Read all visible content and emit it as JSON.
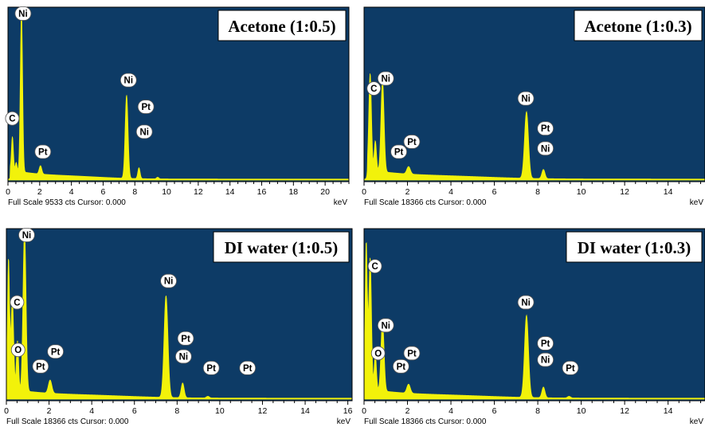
{
  "chart_data": [
    {
      "type": "area",
      "title": "Acetone (1:0.5)",
      "xmax": 21.5,
      "xticks": [
        0,
        2,
        4,
        6,
        8,
        10,
        12,
        14,
        16,
        18,
        20
      ],
      "footer": "Full Scale 9533 cts Cursor: 0.000",
      "unit": "keV",
      "peaks": [
        {
          "x": 0.28,
          "y": 0.2,
          "w": 0.06
        },
        {
          "x": 0.52,
          "y": 0.05,
          "w": 0.05
        },
        {
          "x": 0.85,
          "y": 0.97,
          "w": 0.07
        },
        {
          "x": 2.05,
          "y": 0.05,
          "w": 0.08
        },
        {
          "x": 7.48,
          "y": 0.5,
          "w": 0.09
        },
        {
          "x": 8.26,
          "y": 0.065,
          "w": 0.07
        },
        {
          "x": 9.44,
          "y": 0.01,
          "w": 0.07
        }
      ],
      "labels": [
        {
          "text": "Ni",
          "x": 0.95,
          "y": 1.0
        },
        {
          "text": "C",
          "x": 0.27,
          "y": 0.37
        },
        {
          "text": "Pt",
          "x": 2.2,
          "y": 0.17
        },
        {
          "text": "Ni",
          "x": 7.6,
          "y": 0.6
        },
        {
          "text": "Pt",
          "x": 8.7,
          "y": 0.44
        },
        {
          "text": "Ni",
          "x": 8.6,
          "y": 0.29
        }
      ]
    },
    {
      "type": "area",
      "title": "Acetone (1:0.3)",
      "xmax": 15.7,
      "xticks": [
        0,
        2,
        4,
        6,
        8,
        10,
        12,
        14
      ],
      "footer": "Full Scale 18366 cts Cursor: 0.000",
      "unit": "keV",
      "peaks": [
        {
          "x": 0.28,
          "y": 0.58,
          "w": 0.06
        },
        {
          "x": 0.52,
          "y": 0.18,
          "w": 0.05
        },
        {
          "x": 0.85,
          "y": 0.55,
          "w": 0.07
        },
        {
          "x": 2.05,
          "y": 0.045,
          "w": 0.08
        },
        {
          "x": 7.48,
          "y": 0.4,
          "w": 0.09
        },
        {
          "x": 8.26,
          "y": 0.055,
          "w": 0.07
        }
      ],
      "labels": [
        {
          "text": "C",
          "x": 0.45,
          "y": 0.55
        },
        {
          "text": "Ni",
          "x": 1.0,
          "y": 0.61
        },
        {
          "text": "Pt",
          "x": 1.6,
          "y": 0.17
        },
        {
          "text": "Pt",
          "x": 2.2,
          "y": 0.23
        },
        {
          "text": "Ni",
          "x": 7.45,
          "y": 0.49
        },
        {
          "text": "Pt",
          "x": 8.35,
          "y": 0.31
        },
        {
          "text": "Ni",
          "x": 8.35,
          "y": 0.19
        }
      ]
    },
    {
      "type": "area",
      "title": "DI water (1:0.5)",
      "xmax": 16.2,
      "xticks": [
        0,
        2,
        4,
        6,
        8,
        10,
        12,
        14,
        16
      ],
      "footer": "Full Scale 18366 cts Cursor: 0.000",
      "unit": "keV",
      "peaks": [
        {
          "x": 0.1,
          "y": 0.85,
          "w": 0.05
        },
        {
          "x": 0.28,
          "y": 0.55,
          "w": 0.06
        },
        {
          "x": 0.52,
          "y": 0.3,
          "w": 0.05
        },
        {
          "x": 0.85,
          "y": 0.98,
          "w": 0.07
        },
        {
          "x": 2.05,
          "y": 0.08,
          "w": 0.08
        },
        {
          "x": 7.48,
          "y": 0.62,
          "w": 0.09
        },
        {
          "x": 8.26,
          "y": 0.09,
          "w": 0.07
        },
        {
          "x": 9.44,
          "y": 0.01,
          "w": 0.07
        }
      ],
      "labels": [
        {
          "text": "Ni",
          "x": 0.95,
          "y": 1.0
        },
        {
          "text": "C",
          "x": 0.5,
          "y": 0.59
        },
        {
          "text": "O",
          "x": 0.55,
          "y": 0.3
        },
        {
          "text": "Pt",
          "x": 1.6,
          "y": 0.2
        },
        {
          "text": "Pt",
          "x": 2.3,
          "y": 0.29
        },
        {
          "text": "Ni",
          "x": 7.6,
          "y": 0.72
        },
        {
          "text": "Pt",
          "x": 8.4,
          "y": 0.37
        },
        {
          "text": "Ni",
          "x": 8.3,
          "y": 0.26
        },
        {
          "text": "Pt",
          "x": 9.6,
          "y": 0.19
        },
        {
          "text": "Pt",
          "x": 11.3,
          "y": 0.19
        }
      ]
    },
    {
      "type": "area",
      "title": "DI water (1:0.3)",
      "xmax": 15.7,
      "xticks": [
        0,
        2,
        4,
        6,
        8,
        10,
        12,
        14
      ],
      "footer": "Full Scale 18366 cts Cursor: 0.000",
      "unit": "keV",
      "peaks": [
        {
          "x": 0.1,
          "y": 0.95,
          "w": 0.05
        },
        {
          "x": 0.28,
          "y": 0.8,
          "w": 0.06
        },
        {
          "x": 0.52,
          "y": 0.22,
          "w": 0.05
        },
        {
          "x": 0.85,
          "y": 0.43,
          "w": 0.07
        },
        {
          "x": 2.05,
          "y": 0.055,
          "w": 0.08
        },
        {
          "x": 7.48,
          "y": 0.5,
          "w": 0.09
        },
        {
          "x": 8.26,
          "y": 0.065,
          "w": 0.07
        },
        {
          "x": 9.44,
          "y": 0.01,
          "w": 0.07
        }
      ],
      "labels": [
        {
          "text": "C",
          "x": 0.5,
          "y": 0.81
        },
        {
          "text": "Ni",
          "x": 1.0,
          "y": 0.45
        },
        {
          "text": "O",
          "x": 0.65,
          "y": 0.28
        },
        {
          "text": "Pt",
          "x": 1.7,
          "y": 0.2
        },
        {
          "text": "Pt",
          "x": 2.2,
          "y": 0.28
        },
        {
          "text": "Ni",
          "x": 7.45,
          "y": 0.59
        },
        {
          "text": "Pt",
          "x": 8.35,
          "y": 0.34
        },
        {
          "text": "Ni",
          "x": 8.35,
          "y": 0.24
        },
        {
          "text": "Pt",
          "x": 9.5,
          "y": 0.19
        }
      ]
    }
  ],
  "colors": {
    "plot_background": "#0d3b66",
    "spectrum": "#f2f20a",
    "border": "#000000"
  }
}
